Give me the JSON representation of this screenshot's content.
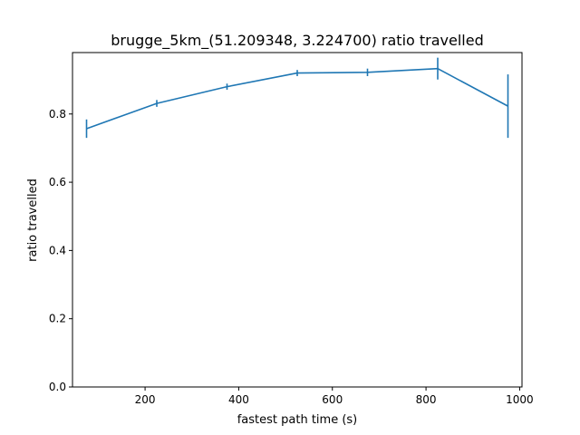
{
  "chart_data": {
    "type": "line",
    "title": "brugge_5km_(51.209348, 3.224700) ratio travelled",
    "xlabel": "fastest path time (s)",
    "ylabel": "ratio travelled",
    "xlim": [
      45,
      1005
    ],
    "ylim": [
      0,
      0.98
    ],
    "xticks": [
      200,
      400,
      600,
      800,
      1000
    ],
    "xtick_labels": [
      "200",
      "400",
      "600",
      "800",
      "1000"
    ],
    "yticks": [
      0.0,
      0.2,
      0.4,
      0.6,
      0.8
    ],
    "ytick_labels": [
      "0.0",
      "0.2",
      "0.4",
      "0.6",
      "0.8"
    ],
    "grid": false,
    "series": [
      {
        "x": [
          75,
          225,
          375,
          525,
          675,
          825,
          975
        ],
        "y": [
          0.757,
          0.831,
          0.88,
          0.92,
          0.922,
          0.933,
          0.823
        ],
        "yerr": [
          0.027,
          0.01,
          0.009,
          0.009,
          0.011,
          0.032,
          0.093
        ],
        "color": "#1f77b4"
      }
    ]
  }
}
